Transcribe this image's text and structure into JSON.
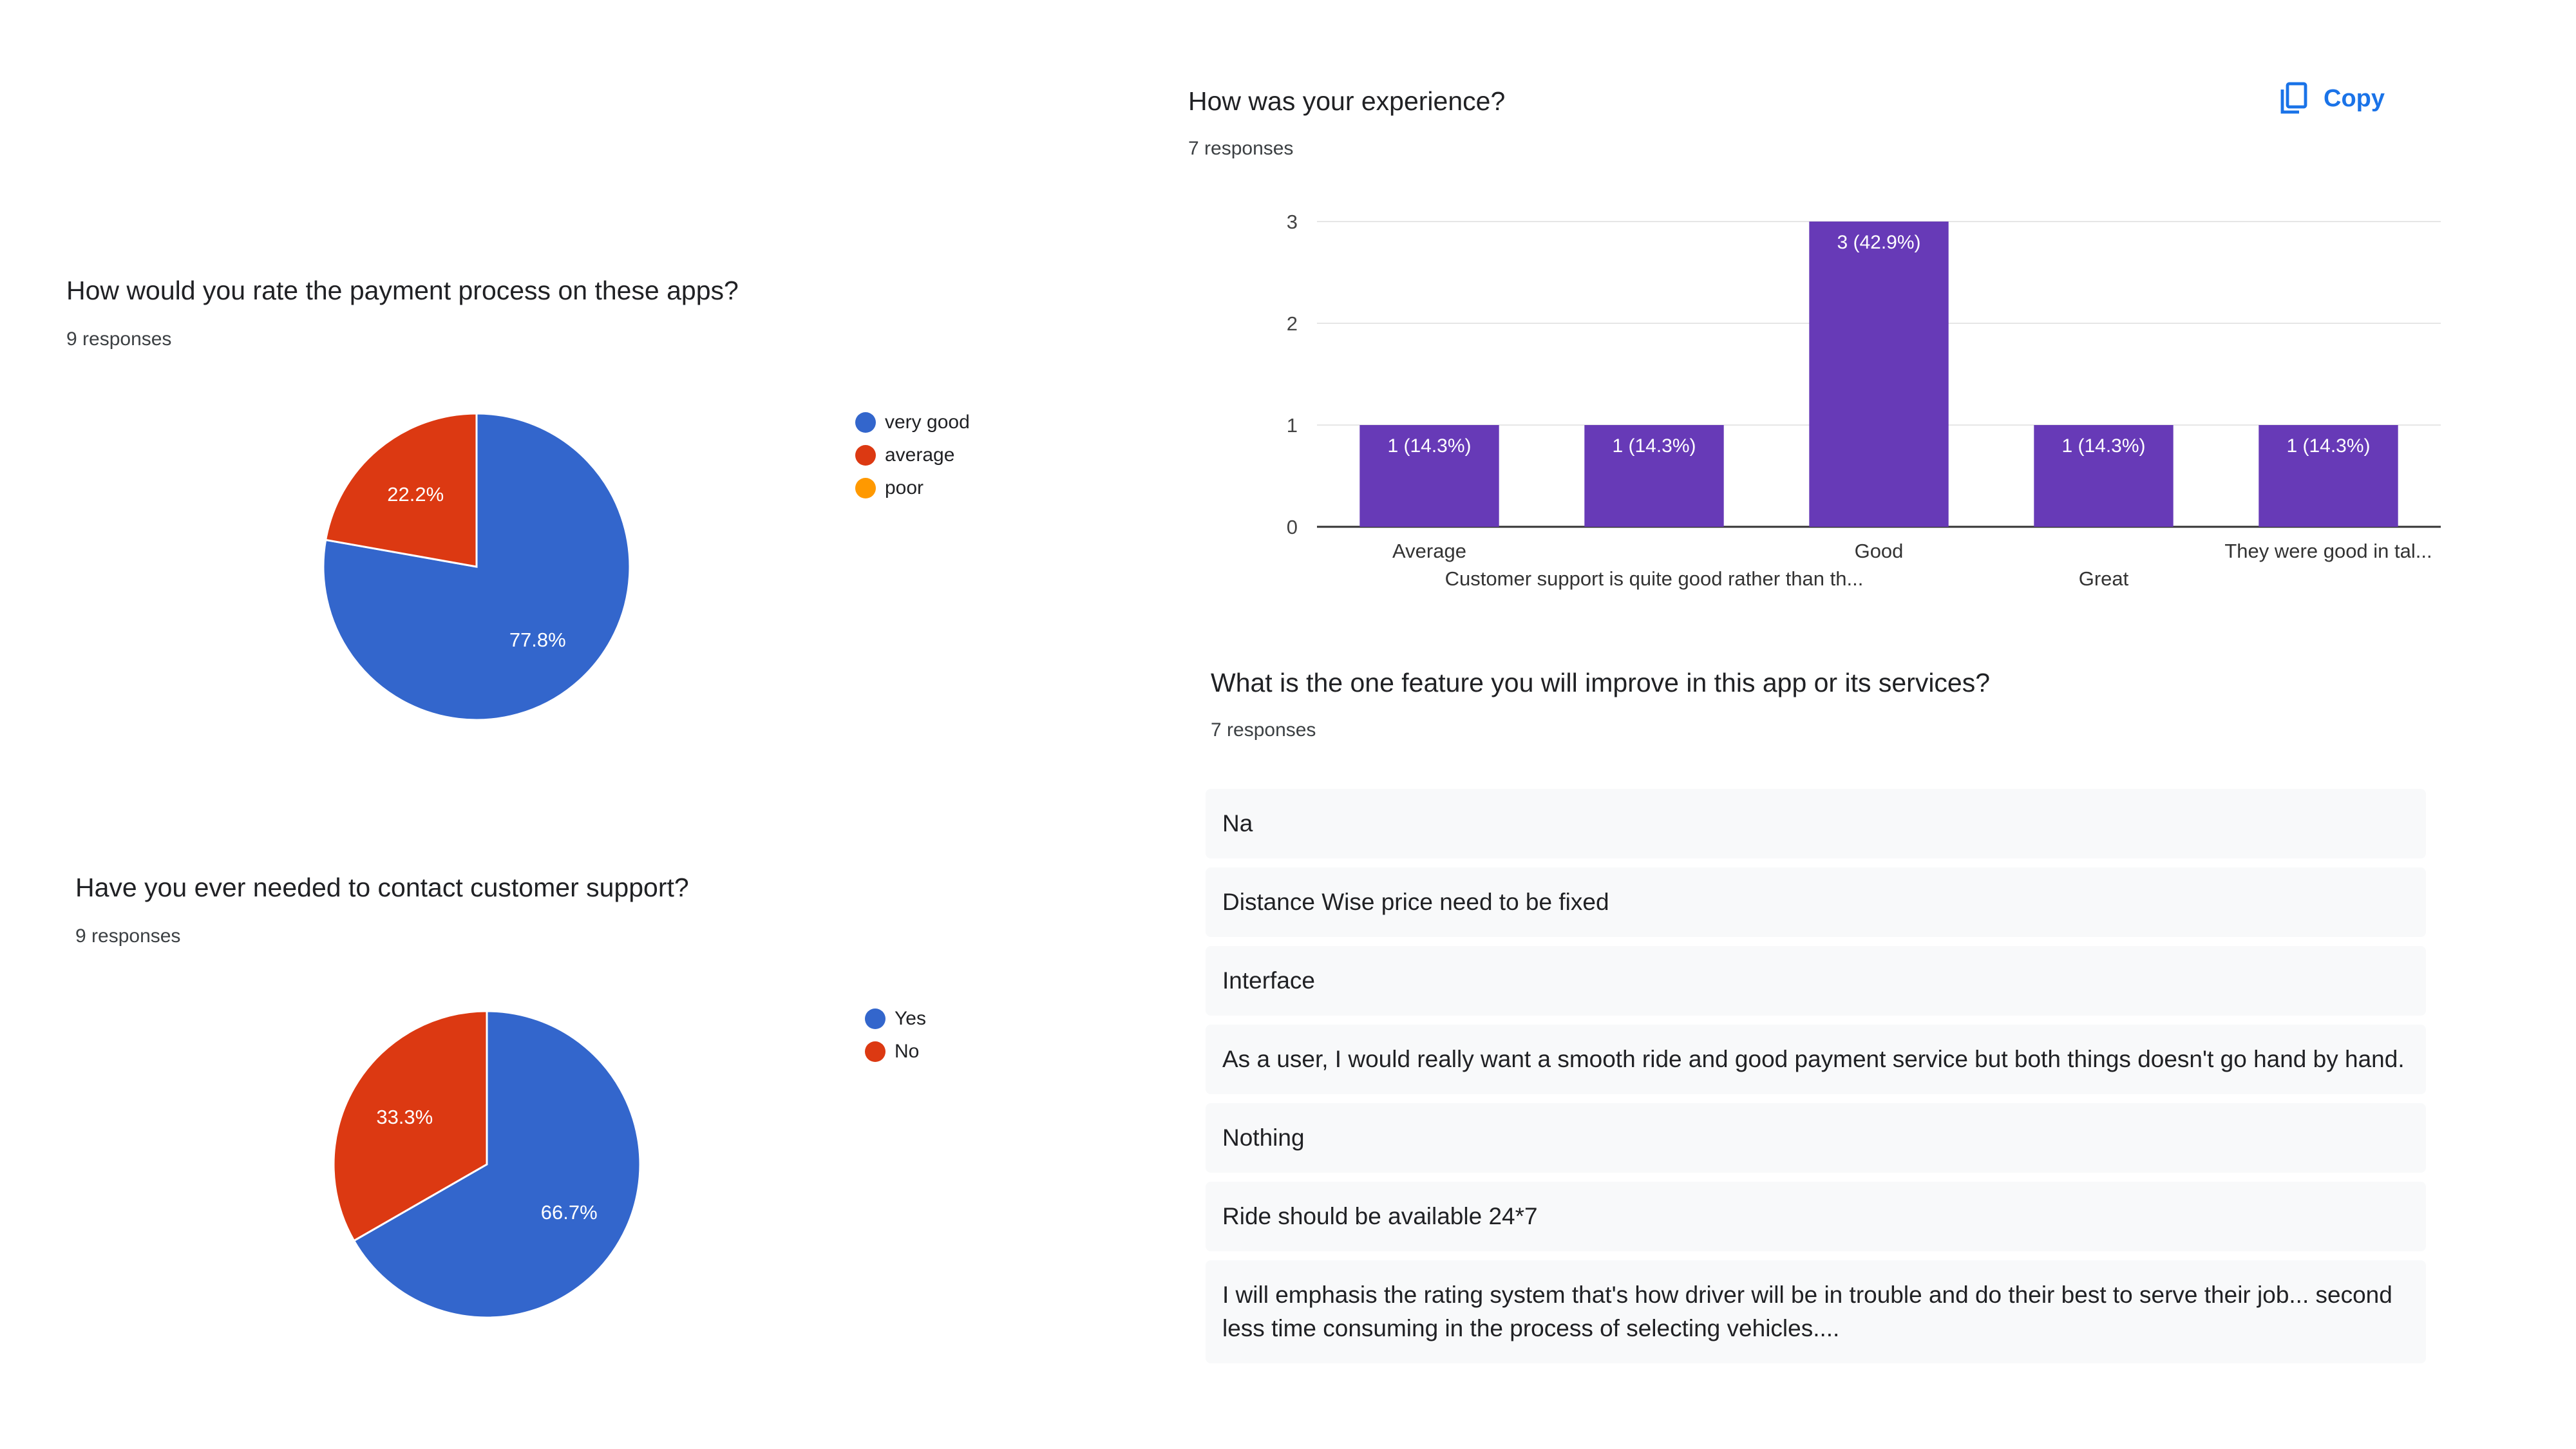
{
  "colors": {
    "blue": "#3366cc",
    "red": "#dc3912",
    "orange": "#ff9900",
    "purple": "#673ab7",
    "accent": "#1a73e8"
  },
  "payment": {
    "title": "How would you rate the payment process on these apps?",
    "responses": "9 responses",
    "chart_data": {
      "type": "pie",
      "slices": [
        {
          "label": "very good",
          "value": 77.8,
          "color": "#3366cc",
          "display": "77.8%"
        },
        {
          "label": "average",
          "value": 22.2,
          "color": "#dc3912",
          "display": "22.2%"
        },
        {
          "label": "poor",
          "value": 0,
          "color": "#ff9900",
          "display": ""
        }
      ],
      "legend_position": "right"
    }
  },
  "support": {
    "title": "Have you ever needed to contact customer support?",
    "responses": "9 responses",
    "chart_data": {
      "type": "pie",
      "slices": [
        {
          "label": "Yes",
          "value": 66.7,
          "color": "#3366cc",
          "display": "66.7%"
        },
        {
          "label": "No",
          "value": 33.3,
          "color": "#dc3912",
          "display": "33.3%"
        }
      ],
      "legend_position": "right"
    }
  },
  "experience": {
    "title": "How was your experience?",
    "responses": "7 responses",
    "copy_label": "Copy",
    "copy_icon": "copy-icon",
    "chart_data": {
      "type": "bar",
      "categories": [
        "Average",
        "Customer support is quite good rather than th...",
        "Good",
        "Great",
        "They were good in tal..."
      ],
      "values": [
        1,
        1,
        3,
        1,
        1
      ],
      "data_labels": [
        "1 (14.3%)",
        "1 (14.3%)",
        "3 (42.9%)",
        "1 (14.3%)",
        "1 (14.3%)"
      ],
      "yticks": [
        "0",
        "1",
        "2",
        "3"
      ],
      "ylim": [
        0,
        3
      ],
      "grid": true,
      "color": "#673ab7"
    }
  },
  "feature": {
    "title": "What is the one feature you will improve in this app or its services?",
    "responses": "7 responses",
    "answers": [
      "Na",
      "Distance Wise price need to be fixed",
      "Interface",
      "As a user, I would really want a smooth ride and good payment service but both things doesn't go hand by hand.",
      "Nothing",
      "Ride should be available 24*7",
      "I will emphasis the rating system that's how driver will be in trouble and do their best to serve their job... second less time consuming in the process of selecting vehicles...."
    ]
  }
}
